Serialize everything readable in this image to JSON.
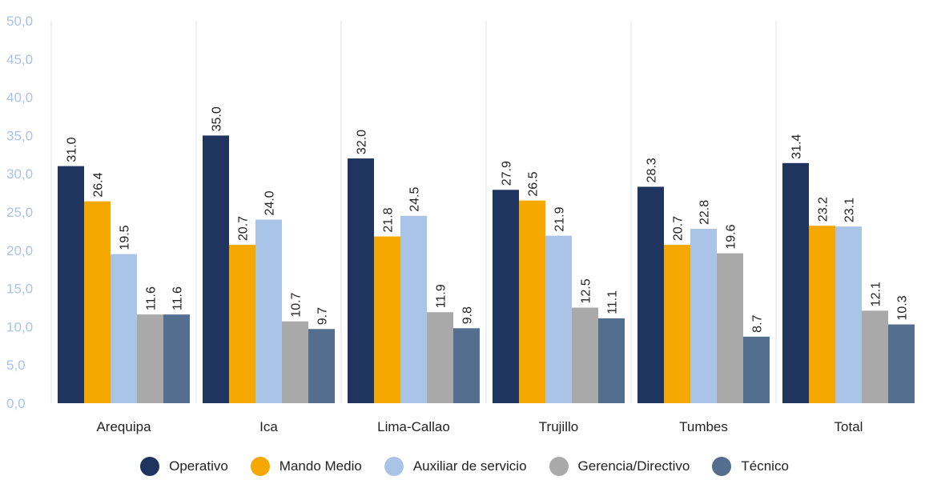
{
  "chart_data": {
    "type": "bar",
    "categories": [
      "Arequipa",
      "Ica",
      "Lima-Callao",
      "Trujillo",
      "Tumbes",
      "Total"
    ],
    "series": [
      {
        "name": "Operativo",
        "color": "#1f3560",
        "values": [
          31.0,
          35.0,
          32.0,
          27.9,
          28.3,
          31.4
        ]
      },
      {
        "name": "Mando Medio",
        "color": "#f5a800",
        "values": [
          26.4,
          20.7,
          21.8,
          26.5,
          20.7,
          23.2
        ]
      },
      {
        "name": "Auxiliar de servicio",
        "color": "#a9c4e6",
        "values": [
          19.5,
          24.0,
          24.5,
          21.9,
          22.8,
          23.1
        ]
      },
      {
        "name": "Gerencia/Directivo",
        "color": "#a9a9a9",
        "values": [
          11.6,
          10.7,
          11.9,
          12.5,
          19.6,
          12.1
        ]
      },
      {
        "name": "Técnico",
        "color": "#546e8f",
        "values": [
          11.6,
          9.7,
          9.8,
          11.1,
          8.7,
          10.3
        ]
      }
    ],
    "y_ticks": [
      "0,0",
      "5,0",
      "10,0",
      "15,0",
      "20,0",
      "25,0",
      "30,0",
      "35,0",
      "40,0",
      "45,0",
      "50,0"
    ],
    "ylim": [
      0,
      50
    ],
    "tick_color": "#a9c4e6",
    "separator_color": "#e3e3e3",
    "legend_position": "bottom",
    "title": "",
    "xlabel": "",
    "ylabel": ""
  }
}
